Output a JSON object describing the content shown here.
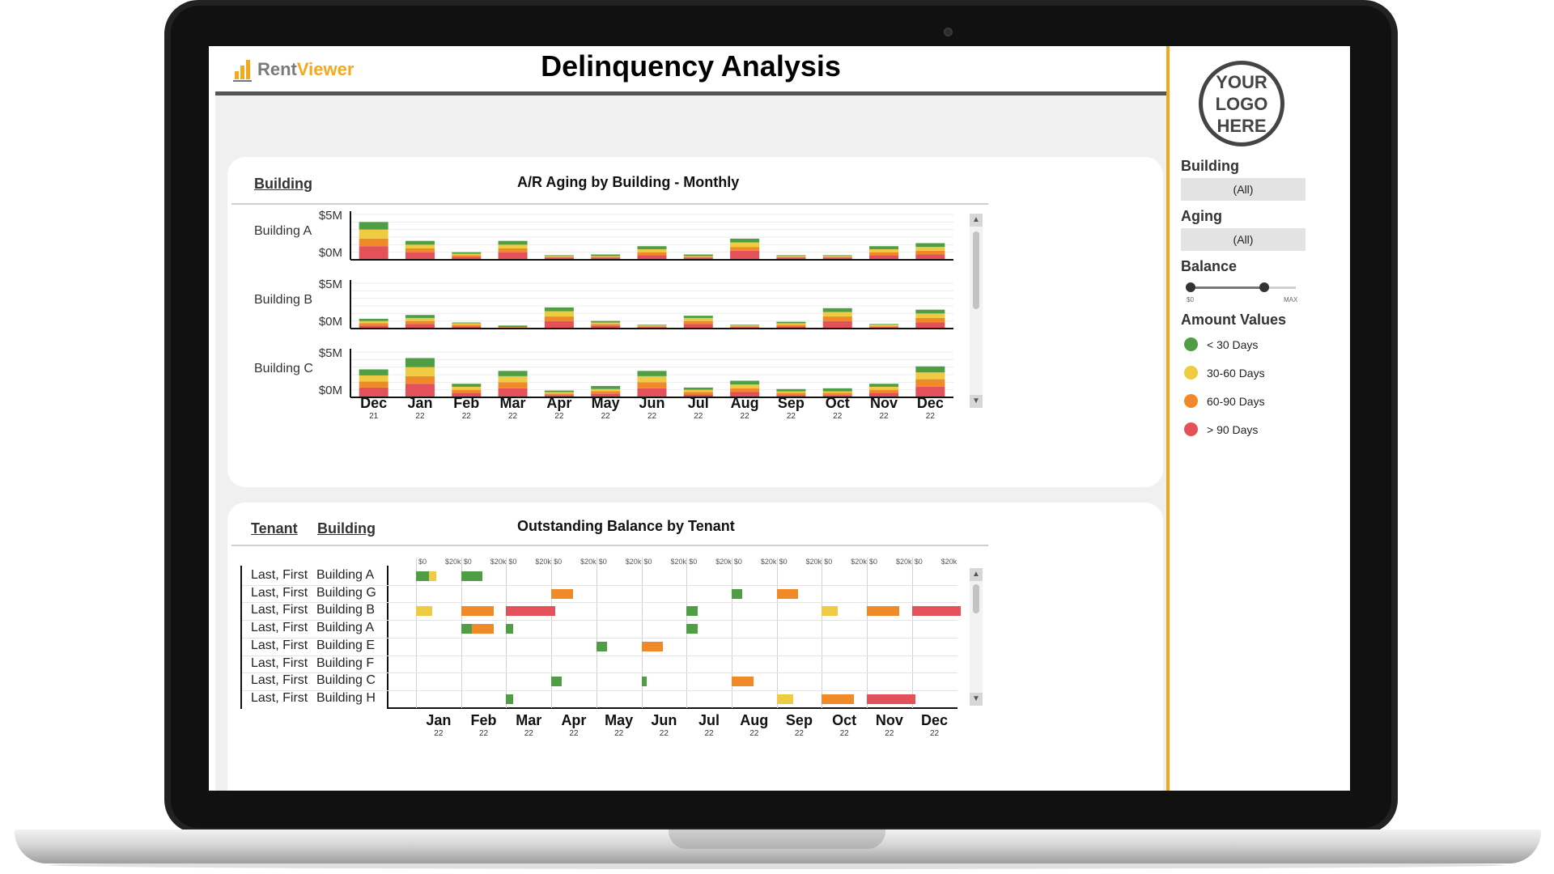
{
  "app": {
    "brand_part1": "Rent",
    "brand_part2": "Viewer",
    "title": "Delinquency Analysis"
  },
  "colors": {
    "lt30": "#4f9e45",
    "d30_60": "#eecb42",
    "d60_90": "#f08a29",
    "gt90": "#e3515a",
    "accent": "#f0a91c"
  },
  "aging_card": {
    "tab": "Building",
    "title": "A/R Aging by Building - Monthly",
    "y_max_label": "$5M",
    "y_min_label": "$0M",
    "scroll_up": "▲",
    "scroll_down": "▼"
  },
  "months": [
    {
      "m": "Dec",
      "y": "21"
    },
    {
      "m": "Jan",
      "y": "22"
    },
    {
      "m": "Feb",
      "y": "22"
    },
    {
      "m": "Mar",
      "y": "22"
    },
    {
      "m": "Apr",
      "y": "22"
    },
    {
      "m": "May",
      "y": "22"
    },
    {
      "m": "Jun",
      "y": "22"
    },
    {
      "m": "Jul",
      "y": "22"
    },
    {
      "m": "Aug",
      "y": "22"
    },
    {
      "m": "Sep",
      "y": "22"
    },
    {
      "m": "Oct",
      "y": "22"
    },
    {
      "m": "Nov",
      "y": "22"
    },
    {
      "m": "Dec",
      "y": "22"
    }
  ],
  "chart_data": [
    {
      "type": "bar",
      "title": "A/R Aging by Building - Monthly",
      "stacked": true,
      "ylim": [
        0,
        6
      ],
      "yunit": "$M",
      "categories": [
        "Dec 21",
        "Jan 22",
        "Feb 22",
        "Mar 22",
        "Apr 22",
        "May 22",
        "Jun 22",
        "Jul 22",
        "Aug 22",
        "Sep 22",
        "Oct 22",
        "Nov 22",
        "Dec 22"
      ],
      "series_names": [
        "> 90 Days",
        "60-90 Days",
        "30-60 Days",
        "< 30 Days"
      ],
      "facets": [
        {
          "name": "Building A",
          "values": [
            [
              1.8,
              1.0,
              1.2,
              1.0
            ],
            [
              1.0,
              0.5,
              0.5,
              0.5
            ],
            [
              0.4,
              0.2,
              0.2,
              0.2
            ],
            [
              1.0,
              0.5,
              0.5,
              0.5
            ],
            [
              0.3,
              0.1,
              0.1,
              0.1
            ],
            [
              0.3,
              0.1,
              0.1,
              0.2
            ],
            [
              0.6,
              0.4,
              0.4,
              0.4
            ],
            [
              0.3,
              0.1,
              0.1,
              0.2
            ],
            [
              1.2,
              0.5,
              0.6,
              0.5
            ],
            [
              0.3,
              0.1,
              0.1,
              0.1
            ],
            [
              0.3,
              0.1,
              0.1,
              0.1
            ],
            [
              0.6,
              0.4,
              0.4,
              0.4
            ],
            [
              0.7,
              0.5,
              0.5,
              0.5
            ]
          ]
        },
        {
          "name": "Building B",
          "values": [
            [
              0.4,
              0.3,
              0.3,
              0.3
            ],
            [
              0.6,
              0.4,
              0.4,
              0.4
            ],
            [
              0.3,
              0.2,
              0.2,
              0.1
            ],
            [
              0.1,
              0.1,
              0,
              0.2
            ],
            [
              1.0,
              0.6,
              0.7,
              0.5
            ],
            [
              0.4,
              0.2,
              0.2,
              0.2
            ],
            [
              0.2,
              0.1,
              0.1,
              0.1
            ],
            [
              0.6,
              0.4,
              0.4,
              0.3
            ],
            [
              0.2,
              0.1,
              0.1,
              0.1
            ],
            [
              0.3,
              0.2,
              0.2,
              0.2
            ],
            [
              1.0,
              0.6,
              0.6,
              0.5
            ],
            [
              0.2,
              0.1,
              0.2,
              0.1
            ],
            [
              0.8,
              0.6,
              0.6,
              0.5
            ]
          ]
        },
        {
          "name": "Building C",
          "values": [
            [
              1.3,
              0.8,
              0.8,
              0.8
            ],
            [
              1.8,
              1.0,
              1.2,
              1.2
            ],
            [
              0.6,
              0.4,
              0.4,
              0.4
            ],
            [
              1.2,
              0.8,
              0.8,
              0.7
            ],
            [
              0.3,
              0.2,
              0.2,
              0.2
            ],
            [
              0.5,
              0.3,
              0.3,
              0.4
            ],
            [
              1.2,
              0.8,
              0.8,
              0.7
            ],
            [
              0.4,
              0.3,
              0.3,
              0.3
            ],
            [
              0.7,
              0.5,
              0.5,
              0.5
            ],
            [
              0.3,
              0.3,
              0.2,
              0.3
            ],
            [
              0.3,
              0.3,
              0.2,
              0.4
            ],
            [
              0.6,
              0.4,
              0.4,
              0.4
            ],
            [
              1.4,
              1.0,
              0.9,
              0.8
            ]
          ]
        }
      ]
    },
    {
      "type": "bar",
      "title": "Outstanding Balance by Tenant",
      "orientation": "horizontal",
      "xlim_per_month": [
        0,
        40
      ],
      "xunit": "$k",
      "rows": [
        {
          "tenant": "Last, First",
          "building": "Building A",
          "bars": [
            {
              "month": 0,
              "segments": [
                [
                  14,
                  "lt30"
                ],
                [
                  8,
                  "d30_60"
                ]
              ]
            },
            {
              "month": 1,
              "segments": [
                [
                  24,
                  "lt30"
                ]
              ]
            }
          ]
        },
        {
          "tenant": "Last, First",
          "building": "Building G",
          "bars": [
            {
              "month": 3,
              "segments": [
                [
                  24,
                  "d60_90"
                ]
              ]
            },
            {
              "month": 7,
              "segments": [
                [
                  12,
                  "lt30"
                ]
              ]
            },
            {
              "month": 8,
              "segments": [
                [
                  24,
                  "d60_90"
                ]
              ]
            }
          ]
        },
        {
          "tenant": "Last, First",
          "building": "Building B",
          "bars": [
            {
              "month": 0,
              "segments": [
                [
                  18,
                  "d30_60"
                ]
              ]
            },
            {
              "month": 1,
              "segments": [
                [
                  36,
                  "d60_90"
                ]
              ]
            },
            {
              "month": 2,
              "segments": [
                [
                  54,
                  "gt90"
                ]
              ]
            },
            {
              "month": 6,
              "segments": [
                [
                  12,
                  "lt30"
                ]
              ]
            },
            {
              "month": 9,
              "segments": [
                [
                  18,
                  "d30_60"
                ]
              ]
            },
            {
              "month": 10,
              "segments": [
                [
                  36,
                  "d60_90"
                ]
              ]
            },
            {
              "month": 11,
              "segments": [
                [
                  54,
                  "gt90"
                ]
              ]
            }
          ]
        },
        {
          "tenant": "Last, First",
          "building": "Building A",
          "bars": [
            {
              "month": 1,
              "segments": [
                [
                  12,
                  "lt30"
                ],
                [
                  24,
                  "d60_90"
                ]
              ]
            },
            {
              "month": 2,
              "segments": [
                [
                  8,
                  "lt30"
                ]
              ]
            },
            {
              "month": 6,
              "segments": [
                [
                  12,
                  "lt30"
                ]
              ]
            }
          ]
        },
        {
          "tenant": "Last, First",
          "building": "Building E",
          "bars": [
            {
              "month": 4,
              "segments": [
                [
                  12,
                  "lt30"
                ]
              ]
            },
            {
              "month": 5,
              "segments": [
                [
                  24,
                  "d60_90"
                ]
              ]
            }
          ]
        },
        {
          "tenant": "Last, First",
          "building": "Building F",
          "bars": []
        },
        {
          "tenant": "Last, First",
          "building": "Building C",
          "bars": [
            {
              "month": 3,
              "segments": [
                [
                  12,
                  "lt30"
                ]
              ]
            },
            {
              "month": 5,
              "segments": [
                [
                  6,
                  "lt30"
                ]
              ]
            },
            {
              "month": 7,
              "segments": [
                [
                  24,
                  "d60_90"
                ]
              ]
            }
          ]
        },
        {
          "tenant": "Last, First",
          "building": "Building H",
          "bars": [
            {
              "month": 2,
              "segments": [
                [
                  8,
                  "lt30"
                ]
              ]
            },
            {
              "month": 8,
              "segments": [
                [
                  18,
                  "d30_60"
                ]
              ]
            },
            {
              "month": 9,
              "segments": [
                [
                  36,
                  "d60_90"
                ]
              ]
            },
            {
              "month": 10,
              "segments": [
                [
                  54,
                  "gt90"
                ]
              ]
            }
          ]
        }
      ]
    }
  ],
  "tenant_card": {
    "tab_tenant": "Tenant",
    "tab_building": "Building",
    "title": "Outstanding Balance by Tenant",
    "tick_zero": "$0",
    "tick_20k": "$20k",
    "scroll_up": "▲",
    "scroll_down": "▼"
  },
  "tenant_months": [
    {
      "m": "Jan",
      "y": "22"
    },
    {
      "m": "Feb",
      "y": "22"
    },
    {
      "m": "Mar",
      "y": "22"
    },
    {
      "m": "Apr",
      "y": "22"
    },
    {
      "m": "May",
      "y": "22"
    },
    {
      "m": "Jun",
      "y": "22"
    },
    {
      "m": "Jul",
      "y": "22"
    },
    {
      "m": "Aug",
      "y": "22"
    },
    {
      "m": "Sep",
      "y": "22"
    },
    {
      "m": "Oct",
      "y": "22"
    },
    {
      "m": "Nov",
      "y": "22"
    },
    {
      "m": "Dec",
      "y": "22"
    }
  ],
  "filters": {
    "logo_text": "YOUR LOGO HERE",
    "building_label": "Building",
    "building_value": "(All)",
    "aging_label": "Aging",
    "aging_value": "(All)",
    "balance_label": "Balance",
    "balance_min": "$0",
    "balance_max": "MAX",
    "balance_low_fraction": 0.0,
    "balance_high_fraction": 0.7,
    "amount_values_label": "Amount Values",
    "legend": [
      {
        "label": "< 30 Days",
        "key": "lt30"
      },
      {
        "label": "30-60 Days",
        "key": "d30_60"
      },
      {
        "label": "60-90 Days",
        "key": "d60_90"
      },
      {
        "label": "> 90 Days",
        "key": "gt90"
      }
    ]
  }
}
